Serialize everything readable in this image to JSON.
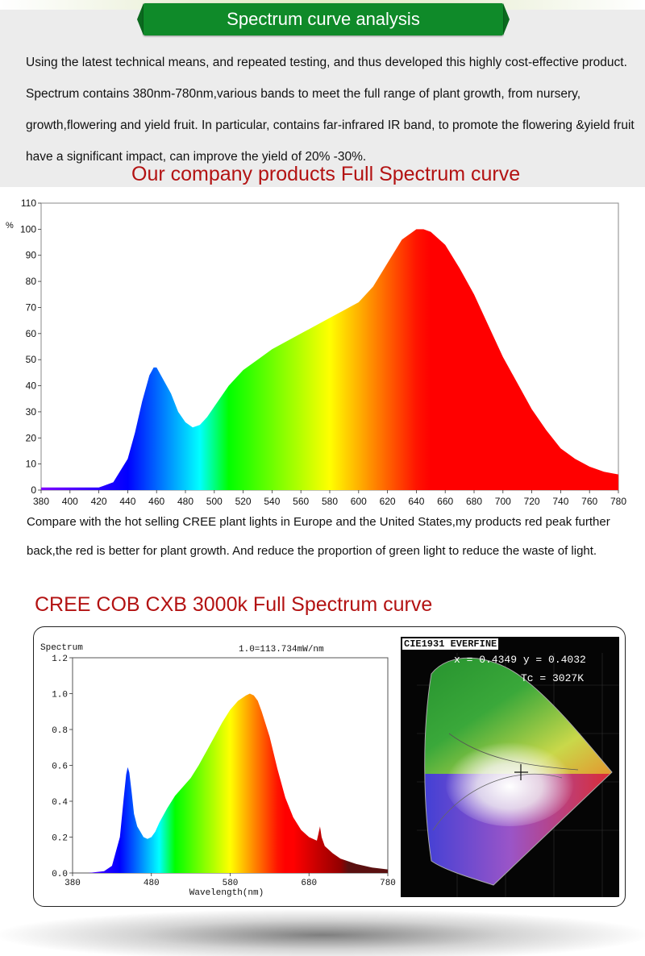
{
  "header": {
    "title": "Spectrum curve analysis"
  },
  "intro": "Using the latest technical means, and repeated testing, and thus developed this highly cost-effective product. Spectrum contains 380nm-780nm,various bands to meet the full range of plant growth, from nursery, growth,flowering and yield fruit. In particular, contains far-infrared IR band, to promote the flowering &yield fruit have a significant impact, can improve the yield of 20% -30%.",
  "ours_heading": "Our company products Full Spectrum curve",
  "comparison_text": "Compare with the hot selling CREE plant lights in Europe and the United States,my products red peak further back,the red is better for plant growth. And reduce the proportion of green light to reduce the waste of light.",
  "cree_heading": "CREE COB CXB 3000k Full Spectrum curve",
  "cie": {
    "title": "CIE1931 EVERFINE",
    "xy_text": "x = 0.4349 y = 0.4032",
    "tc_text": "Tc = 3027K"
  },
  "colors": {
    "title_green": "#0f8a29",
    "heading_red": "#b31212"
  },
  "chart_data": [
    {
      "type": "area",
      "title": "",
      "ylabel": "%",
      "xlabel": "",
      "xlim": [
        380,
        780
      ],
      "ylim": [
        0,
        110
      ],
      "x_ticks": [
        380,
        400,
        420,
        440,
        460,
        480,
        500,
        520,
        540,
        560,
        580,
        600,
        620,
        640,
        660,
        680,
        700,
        720,
        740,
        760,
        780
      ],
      "y_ticks": [
        0,
        10,
        20,
        30,
        40,
        50,
        60,
        70,
        80,
        90,
        100,
        110
      ],
      "fill": "wavelength-color gradient",
      "x": [
        380,
        400,
        420,
        430,
        440,
        445,
        450,
        455,
        458,
        460,
        465,
        470,
        475,
        480,
        485,
        490,
        495,
        500,
        510,
        520,
        530,
        540,
        550,
        560,
        570,
        580,
        590,
        600,
        610,
        620,
        630,
        640,
        645,
        650,
        660,
        670,
        680,
        690,
        700,
        710,
        720,
        730,
        740,
        750,
        760,
        770,
        780
      ],
      "values": [
        1,
        1,
        1,
        3,
        12,
        22,
        34,
        44,
        47,
        47,
        42,
        37,
        30,
        26,
        24,
        25,
        28,
        32,
        40,
        46,
        50,
        54,
        57,
        60,
        63,
        66,
        69,
        72,
        78,
        87,
        96,
        100,
        100,
        99,
        94,
        85,
        75,
        63,
        51,
        41,
        31,
        23,
        16,
        12,
        9,
        7,
        6
      ]
    },
    {
      "type": "area",
      "title": "Spectrum",
      "annotation": "1.0=113.734mW/nm",
      "xlabel": "Wavelength(nm)",
      "ylabel": "",
      "xlim": [
        380,
        780
      ],
      "ylim": [
        0,
        1.2
      ],
      "x_ticks": [
        380,
        480,
        580,
        680,
        780
      ],
      "y_ticks": [
        0.0,
        0.2,
        0.4,
        0.6,
        0.8,
        1.0,
        1.2
      ],
      "x_tick_labels": [
        "380",
        "480",
        "580",
        "680",
        "780"
      ],
      "y_tick_labels": [
        "0.0",
        "0.2",
        "0.4",
        "0.6",
        "0.8",
        "1.0",
        "1.2"
      ],
      "fill": "wavelength-color gradient",
      "x": [
        380,
        400,
        420,
        430,
        440,
        445,
        448,
        450,
        452,
        455,
        458,
        462,
        466,
        470,
        475,
        480,
        485,
        490,
        500,
        510,
        520,
        530,
        540,
        550,
        560,
        570,
        580,
        590,
        600,
        605,
        610,
        615,
        620,
        630,
        640,
        650,
        660,
        670,
        680,
        690,
        692,
        694,
        696,
        700,
        710,
        720,
        740,
        760,
        780
      ],
      "values": [
        0.0,
        0.0,
        0.01,
        0.04,
        0.2,
        0.42,
        0.55,
        0.59,
        0.56,
        0.45,
        0.33,
        0.26,
        0.23,
        0.2,
        0.19,
        0.2,
        0.23,
        0.28,
        0.36,
        0.43,
        0.48,
        0.53,
        0.6,
        0.68,
        0.76,
        0.84,
        0.91,
        0.96,
        0.99,
        1.0,
        0.99,
        0.96,
        0.9,
        0.76,
        0.58,
        0.42,
        0.31,
        0.24,
        0.2,
        0.18,
        0.22,
        0.26,
        0.2,
        0.15,
        0.11,
        0.08,
        0.05,
        0.03,
        0.02
      ]
    }
  ]
}
